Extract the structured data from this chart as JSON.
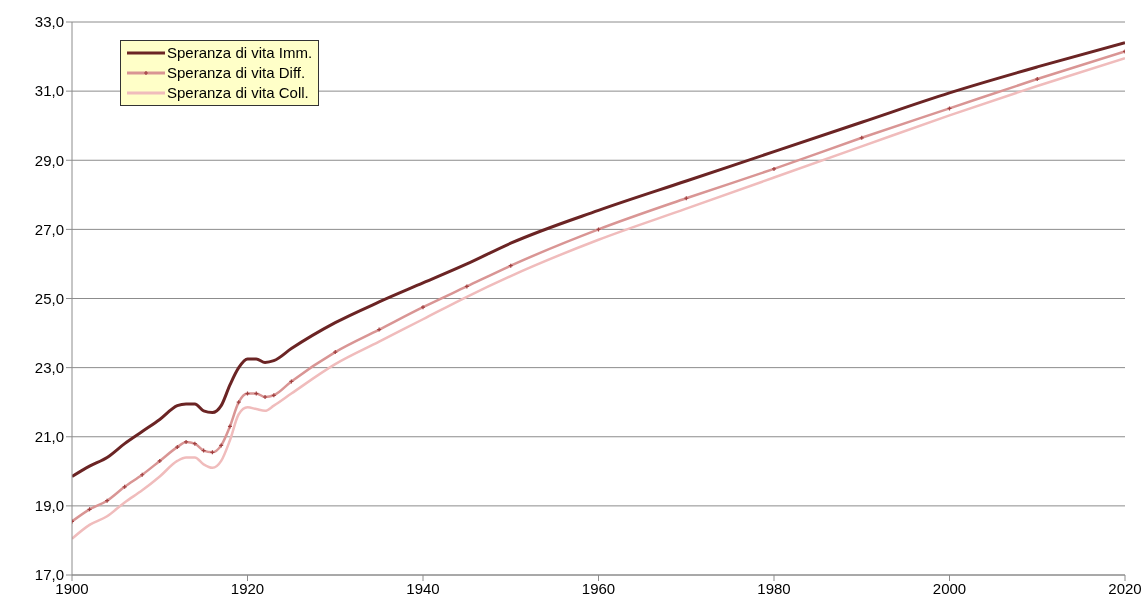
{
  "chart_data": {
    "type": "line",
    "x": [
      1900,
      1902,
      1904,
      1906,
      1908,
      1910,
      1912,
      1913,
      1914,
      1915,
      1916,
      1917,
      1918,
      1919,
      1920,
      1921,
      1922,
      1923,
      1925,
      1930,
      1935,
      1940,
      1945,
      1950,
      1960,
      1970,
      1980,
      1990,
      2000,
      2010,
      2020
    ],
    "series": [
      {
        "name": "Speranza di vita Imm.",
        "color": "#6b2424",
        "marker": "none",
        "values": [
          19.85,
          20.15,
          20.4,
          20.8,
          21.15,
          21.5,
          21.9,
          21.95,
          21.95,
          21.75,
          21.7,
          21.9,
          22.5,
          23.0,
          23.25,
          23.25,
          23.15,
          23.2,
          23.55,
          24.3,
          24.9,
          25.45,
          26.0,
          26.6,
          27.55,
          28.4,
          29.25,
          30.1,
          30.95,
          31.7,
          32.4
        ]
      },
      {
        "name": "Speranza di vita Diff.",
        "color": "#d99594",
        "marker": "cross",
        "values": [
          18.55,
          18.9,
          19.15,
          19.55,
          19.9,
          20.3,
          20.7,
          20.85,
          20.8,
          20.6,
          20.55,
          20.75,
          21.3,
          22.0,
          22.25,
          22.25,
          22.15,
          22.2,
          22.6,
          23.45,
          24.1,
          24.75,
          25.35,
          25.95,
          27.0,
          27.9,
          28.75,
          29.65,
          30.5,
          31.35,
          32.15
        ]
      },
      {
        "name": "Speranza di vita Coll.",
        "color": "#f0bcbc",
        "marker": "none",
        "values": [
          18.05,
          18.45,
          18.7,
          19.1,
          19.45,
          19.85,
          20.3,
          20.4,
          20.4,
          20.2,
          20.1,
          20.3,
          20.9,
          21.65,
          21.85,
          21.8,
          21.75,
          21.9,
          22.25,
          23.1,
          23.75,
          24.4,
          25.05,
          25.65,
          26.7,
          27.6,
          28.5,
          29.4,
          30.3,
          31.15,
          31.95
        ]
      }
    ],
    "xlim": [
      1900,
      2020
    ],
    "xticks": [
      1900,
      1920,
      1940,
      1960,
      1980,
      2000,
      2020
    ],
    "ylim": [
      17,
      33
    ],
    "yticks": [
      {
        "value": 17,
        "label": "17,0"
      },
      {
        "value": 19,
        "label": "19,0"
      },
      {
        "value": 21,
        "label": "21,0"
      },
      {
        "value": 23,
        "label": "23,0"
      },
      {
        "value": 25,
        "label": "25,0"
      },
      {
        "value": 27,
        "label": "27,0"
      },
      {
        "value": 29,
        "label": "29,0"
      },
      {
        "value": 31,
        "label": "31,0"
      },
      {
        "value": 33,
        "label": "33,0"
      }
    ],
    "grid": "y",
    "legend": "top left",
    "line_style": "solid"
  }
}
